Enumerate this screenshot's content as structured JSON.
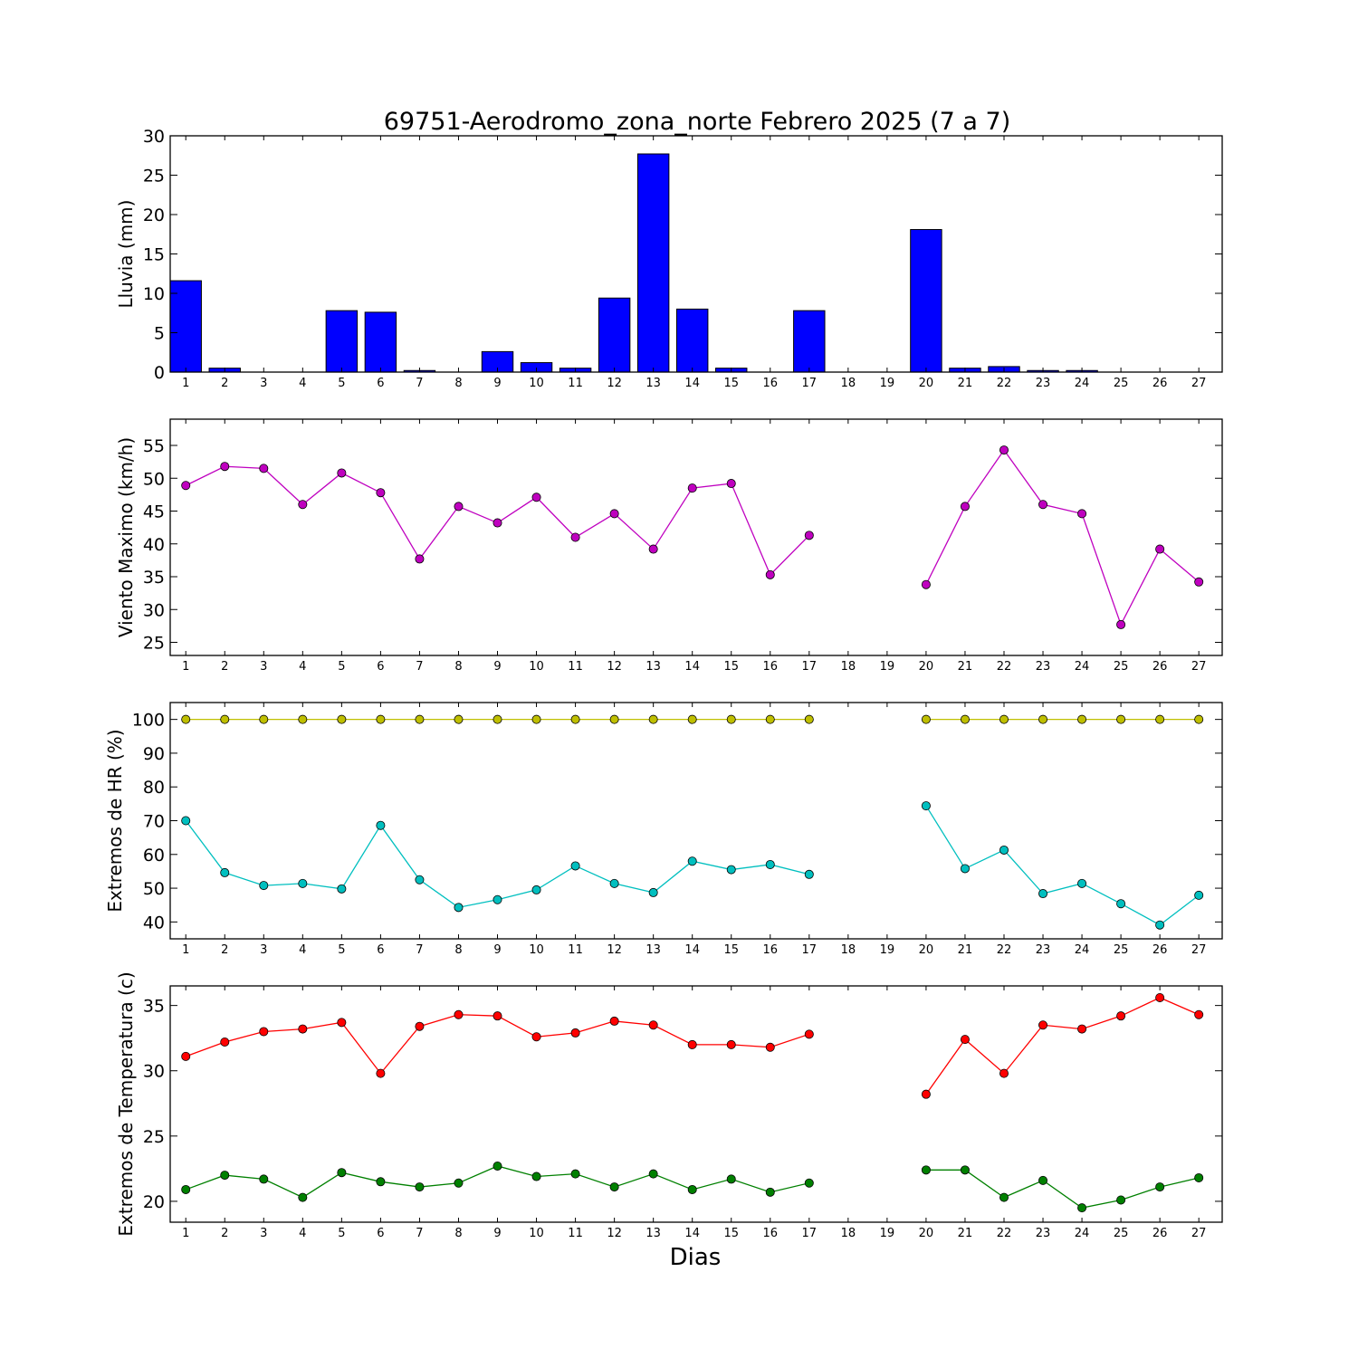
{
  "title": "69751-Aerodromo_zona_norte Febrero 2025  (7 a 7)",
  "xlabel": "Dias",
  "chart_data": [
    {
      "type": "bar",
      "ylabel": "Lluvia (mm)",
      "ylim": [
        0,
        30
      ],
      "yticks": [
        0,
        5,
        10,
        15,
        20,
        25,
        30
      ],
      "x": [
        1,
        2,
        3,
        4,
        5,
        6,
        7,
        8,
        9,
        10,
        11,
        12,
        13,
        14,
        15,
        16,
        17,
        18,
        19,
        20,
        21,
        22,
        23,
        24,
        25,
        26,
        27
      ],
      "series": [
        {
          "color": "#0000ff",
          "values": [
            11.6,
            0.5,
            0,
            0,
            7.8,
            7.6,
            0.2,
            0,
            2.6,
            1.2,
            0.5,
            9.4,
            27.7,
            8.0,
            0.5,
            0,
            7.8,
            null,
            null,
            18.1,
            0.5,
            0.7,
            0.2,
            0.2,
            0,
            0,
            0
          ]
        }
      ]
    },
    {
      "type": "line",
      "ylabel": "Viento Maximo (km/h)",
      "ylim": [
        23,
        59
      ],
      "yticks": [
        25,
        30,
        35,
        40,
        45,
        50,
        55
      ],
      "x": [
        1,
        2,
        3,
        4,
        5,
        6,
        7,
        8,
        9,
        10,
        11,
        12,
        13,
        14,
        15,
        16,
        17,
        18,
        19,
        20,
        21,
        22,
        23,
        24,
        25,
        26,
        27
      ],
      "series": [
        {
          "color": "#bf00bf",
          "values": [
            48.9,
            51.8,
            51.5,
            46.0,
            50.8,
            47.8,
            37.7,
            45.7,
            43.2,
            47.1,
            41.0,
            44.6,
            39.2,
            48.5,
            49.2,
            35.3,
            41.3,
            null,
            null,
            33.8,
            45.7,
            54.3,
            46.0,
            44.6,
            27.7,
            39.2,
            34.2
          ]
        }
      ]
    },
    {
      "type": "line",
      "ylabel": "Extremos de HR (%)",
      "ylim": [
        35,
        105
      ],
      "yticks": [
        40,
        50,
        60,
        70,
        80,
        90,
        100
      ],
      "x": [
        1,
        2,
        3,
        4,
        5,
        6,
        7,
        8,
        9,
        10,
        11,
        12,
        13,
        14,
        15,
        16,
        17,
        18,
        19,
        20,
        21,
        22,
        23,
        24,
        25,
        26,
        27
      ],
      "series": [
        {
          "color": "#bfbf00",
          "values": [
            100,
            100,
            100,
            100,
            100,
            100,
            100,
            100,
            100,
            100,
            100,
            100,
            100,
            100,
            100,
            100,
            100,
            null,
            null,
            100,
            100,
            100,
            100,
            100,
            100,
            100,
            100
          ]
        },
        {
          "color": "#00bfbf",
          "values": [
            70,
            54.6,
            50.8,
            51.4,
            49.8,
            68.6,
            52.5,
            44.3,
            46.6,
            49.5,
            56.6,
            51.4,
            48.7,
            58,
            55.5,
            57,
            54.1,
            null,
            null,
            74.4,
            55.8,
            61.3,
            48.4,
            51.4,
            45.4,
            39.1,
            47.9
          ]
        }
      ]
    },
    {
      "type": "line",
      "ylabel": "Extremos de Temperatura (c)",
      "ylim": [
        18.4,
        36.5
      ],
      "yticks": [
        20,
        25,
        30,
        35
      ],
      "x": [
        1,
        2,
        3,
        4,
        5,
        6,
        7,
        8,
        9,
        10,
        11,
        12,
        13,
        14,
        15,
        16,
        17,
        18,
        19,
        20,
        21,
        22,
        23,
        24,
        25,
        26,
        27
      ],
      "series": [
        {
          "color": "#ff0000",
          "values": [
            31.1,
            32.2,
            33.0,
            33.2,
            33.7,
            29.8,
            33.4,
            34.3,
            34.2,
            32.6,
            32.9,
            33.8,
            33.5,
            32.0,
            32.0,
            31.8,
            32.8,
            null,
            null,
            28.2,
            32.4,
            29.8,
            33.5,
            33.2,
            34.2,
            35.6,
            34.3
          ]
        },
        {
          "color": "#008000",
          "values": [
            20.9,
            22.0,
            21.7,
            20.3,
            22.2,
            21.5,
            21.1,
            21.4,
            22.7,
            21.9,
            22.1,
            21.1,
            22.1,
            20.9,
            21.7,
            20.7,
            21.4,
            null,
            null,
            22.4,
            22.4,
            20.3,
            21.6,
            19.5,
            20.1,
            21.1,
            21.8
          ]
        }
      ]
    }
  ]
}
